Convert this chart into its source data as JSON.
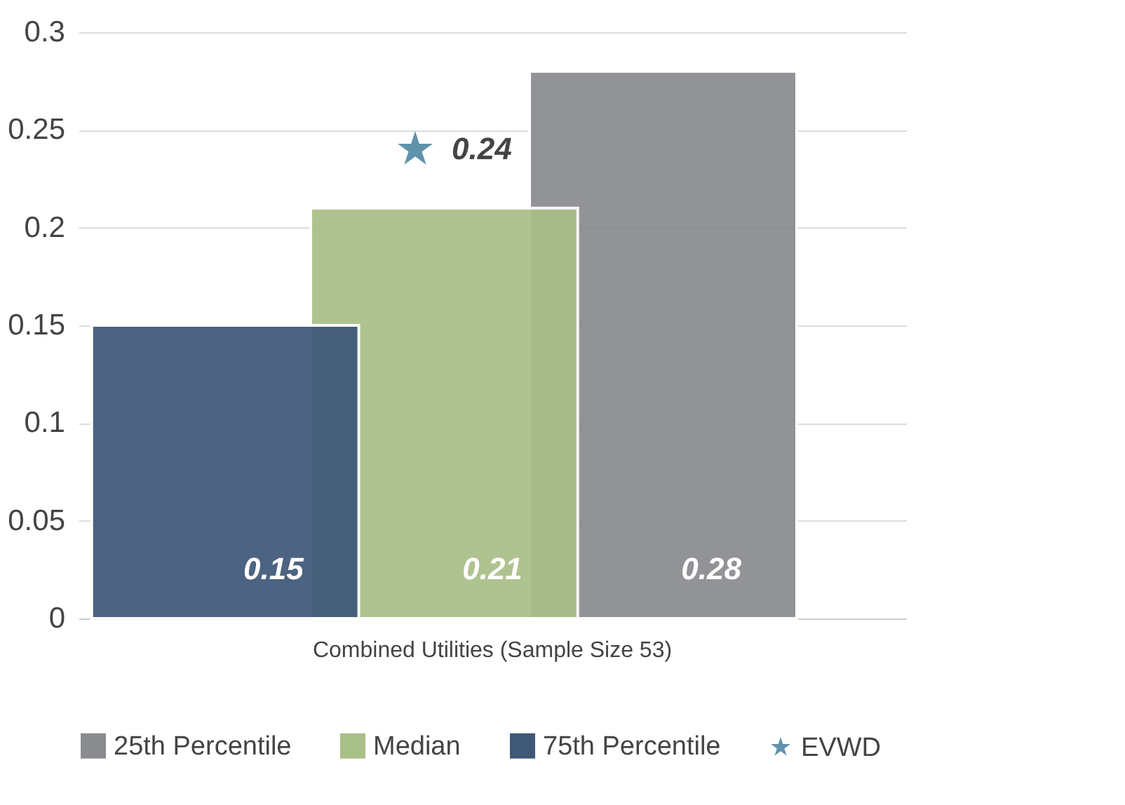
{
  "chart_data": {
    "type": "bar",
    "categories": [
      "Combined Utilities (Sample Size 53)"
    ],
    "series": [
      {
        "name": "25th Percentile",
        "color": "#8a8b8f",
        "values": [
          0.28
        ]
      },
      {
        "name": "Median",
        "color": "#a9bf88",
        "values": [
          0.21
        ]
      },
      {
        "name": "75th Percentile",
        "color": "#3f5878",
        "values": [
          0.15
        ]
      },
      {
        "name": "EVWD",
        "type": "scatter",
        "color": "#5f93ab",
        "marker": "star",
        "x": [
          "Combined Utilities (Sample Size 53)"
        ],
        "values": [
          0.24
        ]
      }
    ],
    "ylim": [
      0,
      0.3
    ],
    "yticks": [
      0,
      0.05,
      0.1,
      0.15,
      0.2,
      0.25,
      0.3
    ],
    "grid": "y",
    "legend": "bottom",
    "data_labels": true
  }
}
